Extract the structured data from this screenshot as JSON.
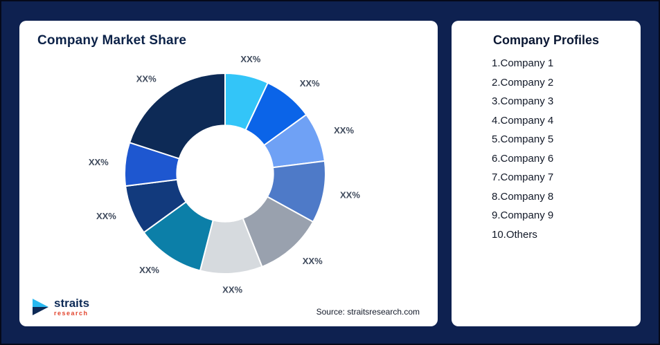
{
  "page": {
    "background": "#0e2150"
  },
  "chart_card": {
    "title": "Company Market Share",
    "source": "Source: straitsresearch.com"
  },
  "logo": {
    "brand": "straits",
    "sub": "research"
  },
  "profiles_card": {
    "title": "Company Profiles",
    "items": [
      "1.Company 1",
      "2.Company 2",
      "3.Company 3",
      "4.Company 4",
      "5.Company 5",
      "6.Company 6",
      "7.Company 7",
      "8.Company 8",
      "9.Company 9",
      "10.Others"
    ]
  },
  "chart_data": {
    "type": "pie",
    "subtype": "donut",
    "title": "Company Market Share",
    "labels": [
      "Company 1",
      "Company 2",
      "Company 3",
      "Company 4",
      "Company 5",
      "Company 6",
      "Company 7",
      "Company 8",
      "Company 9",
      "Others"
    ],
    "values": [
      7,
      8,
      8,
      10,
      11,
      10,
      11,
      8,
      7,
      20
    ],
    "display_labels": [
      "XX%",
      "XX%",
      "XX%",
      "XX%",
      "XX%",
      "XX%",
      "XX%",
      "XX%",
      "XX%",
      "XX%"
    ],
    "colors": [
      "#33c5f8",
      "#0b64e8",
      "#6fa1f5",
      "#4e7ac8",
      "#99a1ae",
      "#d6dade",
      "#0c7fa8",
      "#123a7d",
      "#1e57d0",
      "#0d2a56"
    ],
    "start_angle_deg": 0,
    "direction": "clockwise",
    "inner_radius_ratio": 0.48,
    "legend": "none",
    "annotation": "all slice values masked as XX%"
  }
}
